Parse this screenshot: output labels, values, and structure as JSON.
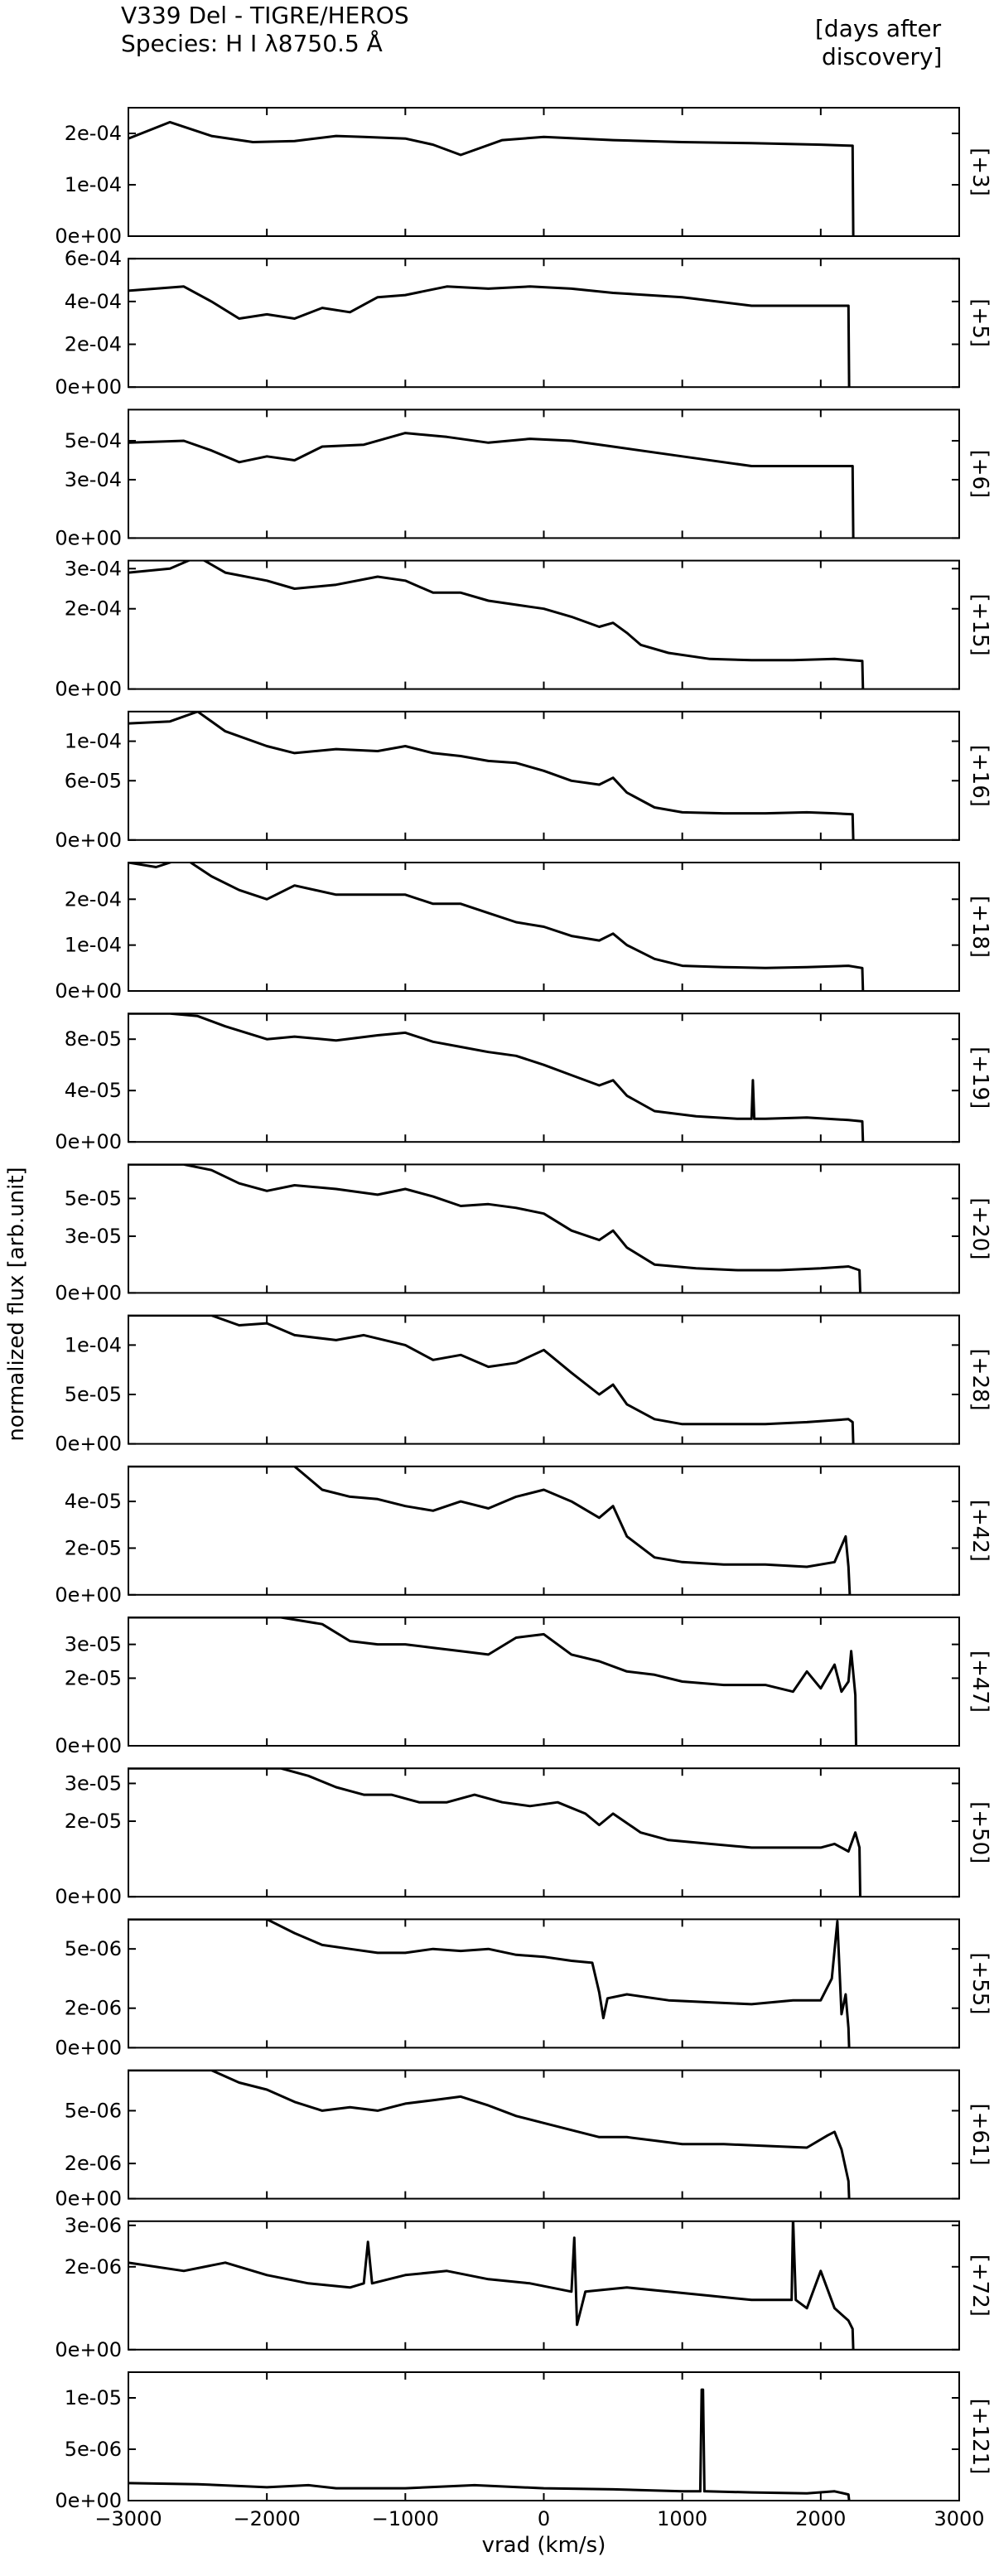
{
  "title_line1": "V339 Del - TIGRE/HEROS",
  "title_line2": "Species: H I λ8750.5 Å",
  "days_header_line1": "[days after",
  "days_header_line2": "discovery]",
  "chart_data": {
    "type": "line",
    "xlabel": "vrad (km/s)",
    "ylabel": "normalized flux [arb.unit]",
    "xlim": [
      -3000,
      3000
    ],
    "xticks": [
      -3000,
      -2000,
      -1000,
      0,
      1000,
      2000,
      3000
    ],
    "xtick_labels": [
      "−3000",
      "−2000",
      "−1000",
      "0",
      "1000",
      "2000",
      "3000"
    ],
    "panels": [
      {
        "day": "[+3]",
        "ylim": [
          0,
          0.00025
        ],
        "yticks": [
          0,
          0.0001,
          0.0002
        ],
        "ytick_labels": [
          "0e+00",
          "1e-04",
          "2e-04"
        ],
        "x": [
          -3000,
          -2700,
          -2400,
          -2100,
          -1800,
          -1500,
          -1300,
          -1000,
          -800,
          -600,
          -300,
          0,
          500,
          1000,
          1500,
          2000,
          2230,
          2235
        ],
        "y": [
          0.00019,
          0.000222,
          0.000195,
          0.000183,
          0.000185,
          0.000195,
          0.000193,
          0.00019,
          0.000178,
          0.000158,
          0.000187,
          0.000193,
          0.000187,
          0.000183,
          0.000181,
          0.000178,
          0.000176,
          0
        ]
      },
      {
        "day": "[+5]",
        "ylim": [
          0,
          0.0006
        ],
        "yticks": [
          0,
          0.0002,
          0.0004,
          0.0006
        ],
        "ytick_labels": [
          "0e+00",
          "2e-04",
          "4e-04",
          "6e-04"
        ],
        "x": [
          -3000,
          -2600,
          -2400,
          -2200,
          -2000,
          -1800,
          -1600,
          -1400,
          -1200,
          -1000,
          -700,
          -400,
          -100,
          200,
          500,
          1000,
          1500,
          2000,
          2200,
          2205
        ],
        "y": [
          0.00045,
          0.00047,
          0.0004,
          0.00032,
          0.00034,
          0.00032,
          0.00037,
          0.00035,
          0.00042,
          0.00043,
          0.00047,
          0.00046,
          0.00047,
          0.00046,
          0.00044,
          0.00042,
          0.00038,
          0.00038,
          0.00038,
          0
        ]
      },
      {
        "day": "[+6]",
        "ylim": [
          0,
          0.00066
        ],
        "yticks": [
          0,
          0.0003,
          0.0005
        ],
        "ytick_labels": [
          "0e+00",
          "3e-04",
          "5e-04"
        ],
        "x": [
          -3000,
          -2600,
          -2400,
          -2200,
          -2000,
          -1800,
          -1600,
          -1300,
          -1000,
          -700,
          -400,
          -100,
          200,
          500,
          1000,
          1500,
          2000,
          2230,
          2235
        ],
        "y": [
          0.00049,
          0.0005,
          0.00045,
          0.00039,
          0.00042,
          0.0004,
          0.00047,
          0.00048,
          0.00054,
          0.00052,
          0.00049,
          0.00051,
          0.0005,
          0.00047,
          0.00042,
          0.00037,
          0.00037,
          0.00037,
          0
        ]
      },
      {
        "day": "[+15]",
        "ylim": [
          0,
          0.00032
        ],
        "yticks": [
          0,
          0.0002,
          0.0003
        ],
        "ytick_labels": [
          "0e+00",
          "2e-04",
          "3e-04"
        ],
        "x": [
          -3000,
          -2700,
          -2500,
          -2300,
          -2000,
          -1800,
          -1500,
          -1200,
          -1000,
          -800,
          -600,
          -400,
          -200,
          0,
          200,
          400,
          500,
          600,
          700,
          900,
          1200,
          1500,
          1800,
          2100,
          2300,
          2305
        ],
        "y": [
          0.00029,
          0.0003,
          0.00033,
          0.00029,
          0.00027,
          0.00025,
          0.00026,
          0.00028,
          0.00027,
          0.00024,
          0.00024,
          0.00022,
          0.00021,
          0.0002,
          0.00018,
          0.000155,
          0.000165,
          0.00014,
          0.00011,
          9e-05,
          7.5e-05,
          7.2e-05,
          7.2e-05,
          7.5e-05,
          7e-05,
          0
        ]
      },
      {
        "day": "[+16]",
        "ylim": [
          0,
          0.00013
        ],
        "yticks": [
          0,
          6e-05,
          0.0001
        ],
        "ytick_labels": [
          "0e+00",
          "6e-05",
          "1e-04"
        ],
        "x": [
          -3000,
          -2700,
          -2500,
          -2300,
          -2000,
          -1800,
          -1500,
          -1200,
          -1000,
          -800,
          -600,
          -400,
          -200,
          0,
          200,
          400,
          500,
          600,
          800,
          1000,
          1300,
          1600,
          1900,
          2100,
          2230,
          2235
        ],
        "y": [
          0.000118,
          0.00012,
          0.00013,
          0.00011,
          9.5e-05,
          8.8e-05,
          9.2e-05,
          9e-05,
          9.5e-05,
          8.8e-05,
          8.5e-05,
          8e-05,
          7.8e-05,
          7e-05,
          6e-05,
          5.6e-05,
          6.3e-05,
          4.8e-05,
          3.3e-05,
          2.8e-05,
          2.7e-05,
          2.7e-05,
          2.8e-05,
          2.7e-05,
          2.6e-05,
          0
        ]
      },
      {
        "day": "[+18]",
        "ylim": [
          0,
          0.00028
        ],
        "yticks": [
          0,
          0.0001,
          0.0002
        ],
        "ytick_labels": [
          "0e+00",
          "1e-04",
          "2e-04"
        ],
        "x": [
          -3000,
          -2800,
          -2600,
          -2400,
          -2200,
          -2000,
          -1800,
          -1500,
          -1200,
          -1000,
          -800,
          -600,
          -400,
          -200,
          0,
          200,
          400,
          500,
          600,
          800,
          1000,
          1300,
          1600,
          1900,
          2200,
          2300,
          2305
        ],
        "y": [
          0.00028,
          0.00027,
          0.00029,
          0.00025,
          0.00022,
          0.0002,
          0.00023,
          0.00021,
          0.00021,
          0.00021,
          0.00019,
          0.00019,
          0.00017,
          0.00015,
          0.00014,
          0.00012,
          0.00011,
          0.000125,
          0.0001,
          7e-05,
          5.5e-05,
          5.2e-05,
          5e-05,
          5.2e-05,
          5.5e-05,
          5e-05,
          0
        ]
      },
      {
        "day": "[+19]",
        "ylim": [
          0,
          0.0001
        ],
        "yticks": [
          0,
          4e-05,
          8e-05
        ],
        "ytick_labels": [
          "0e+00",
          "4e-05",
          "8e-05"
        ],
        "x": [
          -3000,
          -2700,
          -2500,
          -2300,
          -2000,
          -1800,
          -1500,
          -1200,
          -1000,
          -800,
          -600,
          -400,
          -200,
          0,
          200,
          400,
          500,
          600,
          800,
          1100,
          1400,
          1500,
          1510,
          1520,
          1530,
          1600,
          1900,
          2200,
          2300,
          2305
        ],
        "y": [
          0.0001,
          0.0001,
          9.8e-05,
          9e-05,
          8e-05,
          8.2e-05,
          7.9e-05,
          8.3e-05,
          8.5e-05,
          7.8e-05,
          7.4e-05,
          7e-05,
          6.7e-05,
          6e-05,
          5.2e-05,
          4.4e-05,
          4.8e-05,
          3.6e-05,
          2.4e-05,
          2e-05,
          1.8e-05,
          1.8e-05,
          4.8e-05,
          1.8e-05,
          1.8e-05,
          1.8e-05,
          1.9e-05,
          1.7e-05,
          1.6e-05,
          0
        ]
      },
      {
        "day": "[+20]",
        "ylim": [
          0,
          6.8e-05
        ],
        "yticks": [
          0,
          3e-05,
          5e-05
        ],
        "ytick_labels": [
          "0e+00",
          "3e-05",
          "5e-05"
        ],
        "x": [
          -3000,
          -2600,
          -2400,
          -2200,
          -2000,
          -1800,
          -1500,
          -1200,
          -1000,
          -800,
          -600,
          -400,
          -200,
          0,
          200,
          400,
          500,
          600,
          800,
          1100,
          1400,
          1700,
          2000,
          2200,
          2280,
          2285
        ],
        "y": [
          6.8e-05,
          6.8e-05,
          6.5e-05,
          5.8e-05,
          5.4e-05,
          5.7e-05,
          5.5e-05,
          5.2e-05,
          5.5e-05,
          5.1e-05,
          4.6e-05,
          4.7e-05,
          4.5e-05,
          4.2e-05,
          3.3e-05,
          2.8e-05,
          3.3e-05,
          2.4e-05,
          1.5e-05,
          1.3e-05,
          1.2e-05,
          1.2e-05,
          1.3e-05,
          1.4e-05,
          1.2e-05,
          0
        ]
      },
      {
        "day": "[+28]",
        "ylim": [
          0,
          0.00013
        ],
        "yticks": [
          0,
          5e-05,
          0.0001
        ],
        "ytick_labels": [
          "0e+00",
          "5e-05",
          "1e-04"
        ],
        "x": [
          -3000,
          -2400,
          -2200,
          -2000,
          -1800,
          -1500,
          -1300,
          -1000,
          -800,
          -600,
          -400,
          -200,
          0,
          200,
          400,
          500,
          600,
          800,
          1000,
          1300,
          1600,
          1900,
          2200,
          2230,
          2235
        ],
        "y": [
          0.00013,
          0.00013,
          0.00012,
          0.000122,
          0.00011,
          0.000105,
          0.00011,
          0.0001,
          8.5e-05,
          9e-05,
          7.8e-05,
          8.2e-05,
          9.5e-05,
          7.2e-05,
          5e-05,
          6e-05,
          4e-05,
          2.5e-05,
          2e-05,
          2e-05,
          2e-05,
          2.2e-05,
          2.5e-05,
          2.2e-05,
          0
        ]
      },
      {
        "day": "[+42]",
        "ylim": [
          0,
          5.5e-05
        ],
        "yticks": [
          0,
          2e-05,
          4e-05
        ],
        "ytick_labels": [
          "0e+00",
          "2e-05",
          "4e-05"
        ],
        "x": [
          -3000,
          -1800,
          -1600,
          -1400,
          -1200,
          -1000,
          -800,
          -600,
          -400,
          -200,
          0,
          200,
          400,
          500,
          600,
          800,
          1000,
          1300,
          1600,
          1900,
          2100,
          2180,
          2200,
          2210
        ],
        "y": [
          5.5e-05,
          5.5e-05,
          4.5e-05,
          4.2e-05,
          4.1e-05,
          3.8e-05,
          3.6e-05,
          4e-05,
          3.7e-05,
          4.2e-05,
          4.5e-05,
          4e-05,
          3.3e-05,
          3.8e-05,
          2.5e-05,
          1.6e-05,
          1.4e-05,
          1.3e-05,
          1.3e-05,
          1.2e-05,
          1.4e-05,
          2.5e-05,
          1.2e-05,
          0
        ]
      },
      {
        "day": "[+47]",
        "ylim": [
          0,
          3.8e-05
        ],
        "yticks": [
          0,
          2e-05,
          3e-05
        ],
        "ytick_labels": [
          "0e+00",
          "2e-05",
          "3e-05"
        ],
        "x": [
          -3000,
          -1900,
          -1600,
          -1400,
          -1200,
          -1000,
          -800,
          -600,
          -400,
          -200,
          0,
          200,
          400,
          600,
          800,
          1000,
          1300,
          1600,
          1800,
          1900,
          2000,
          2100,
          2150,
          2200,
          2220,
          2250,
          2255
        ],
        "y": [
          3.8e-05,
          3.8e-05,
          3.6e-05,
          3.1e-05,
          3e-05,
          3e-05,
          2.9e-05,
          2.8e-05,
          2.7e-05,
          3.2e-05,
          3.3e-05,
          2.7e-05,
          2.5e-05,
          2.2e-05,
          2.1e-05,
          1.9e-05,
          1.8e-05,
          1.8e-05,
          1.6e-05,
          2.2e-05,
          1.7e-05,
          2.4e-05,
          1.6e-05,
          1.9e-05,
          2.8e-05,
          1.5e-05,
          0
        ]
      },
      {
        "day": "[+50]",
        "ylim": [
          0,
          3.4e-05
        ],
        "yticks": [
          0,
          2e-05,
          3e-05
        ],
        "ytick_labels": [
          "0e+00",
          "2e-05",
          "3e-05"
        ],
        "x": [
          -3000,
          -1900,
          -1700,
          -1500,
          -1300,
          -1100,
          -900,
          -700,
          -500,
          -300,
          -100,
          100,
          300,
          400,
          500,
          700,
          900,
          1200,
          1500,
          1800,
          2000,
          2100,
          2200,
          2250,
          2280,
          2285
        ],
        "y": [
          3.4e-05,
          3.4e-05,
          3.2e-05,
          2.9e-05,
          2.7e-05,
          2.7e-05,
          2.5e-05,
          2.5e-05,
          2.7e-05,
          2.5e-05,
          2.4e-05,
          2.5e-05,
          2.2e-05,
          1.9e-05,
          2.2e-05,
          1.7e-05,
          1.5e-05,
          1.4e-05,
          1.3e-05,
          1.3e-05,
          1.3e-05,
          1.4e-05,
          1.2e-05,
          1.7e-05,
          1.3e-05,
          0
        ]
      },
      {
        "day": "[+55]",
        "ylim": [
          0,
          6.5e-06
        ],
        "yticks": [
          0,
          2e-06,
          5e-06
        ],
        "ytick_labels": [
          "0e+00",
          "2e-06",
          "5e-06"
        ],
        "x": [
          -3000,
          -2000,
          -1800,
          -1600,
          -1400,
          -1200,
          -1000,
          -800,
          -600,
          -400,
          -200,
          0,
          200,
          350,
          400,
          430,
          460,
          600,
          900,
          1200,
          1500,
          1800,
          2000,
          2080,
          2120,
          2150,
          2180,
          2200,
          2205
        ],
        "y": [
          6.5e-06,
          6.5e-06,
          5.8e-06,
          5.2e-06,
          5e-06,
          4.8e-06,
          4.8e-06,
          5e-06,
          4.9e-06,
          5e-06,
          4.7e-06,
          4.6e-06,
          4.4e-06,
          4.3e-06,
          2.8e-06,
          1.5e-06,
          2.5e-06,
          2.7e-06,
          2.4e-06,
          2.3e-06,
          2.2e-06,
          2.4e-06,
          2.4e-06,
          3.5e-06,
          6.4e-06,
          1.7e-06,
          2.7e-06,
          1e-06,
          0
        ]
      },
      {
        "day": "[+61]",
        "ylim": [
          0,
          7.3e-06
        ],
        "yticks": [
          0,
          2e-06,
          5e-06
        ],
        "ytick_labels": [
          "0e+00",
          "2e-06",
          "5e-06"
        ],
        "x": [
          -3000,
          -2400,
          -2200,
          -2000,
          -1800,
          -1600,
          -1400,
          -1200,
          -1000,
          -800,
          -600,
          -400,
          -200,
          0,
          200,
          400,
          600,
          800,
          1000,
          1300,
          1600,
          1900,
          2050,
          2100,
          2150,
          2200,
          2205
        ],
        "y": [
          7.3e-06,
          7.3e-06,
          6.6e-06,
          6.2e-06,
          5.5e-06,
          5e-06,
          5.2e-06,
          5e-06,
          5.4e-06,
          5.6e-06,
          5.8e-06,
          5.3e-06,
          4.7e-06,
          4.3e-06,
          3.9e-06,
          3.5e-06,
          3.5e-06,
          3.3e-06,
          3.1e-06,
          3.1e-06,
          3e-06,
          2.9e-06,
          3.6e-06,
          3.8e-06,
          2.8e-06,
          1e-06,
          0
        ]
      },
      {
        "day": "[+72]",
        "ylim": [
          0,
          3.1e-06
        ],
        "yticks": [
          0,
          2e-06,
          3e-06
        ],
        "ytick_labels": [
          "0e+00",
          "2e-06",
          "3e-06"
        ],
        "x": [
          -3000,
          -2600,
          -2300,
          -2000,
          -1700,
          -1400,
          -1300,
          -1270,
          -1240,
          -1000,
          -700,
          -400,
          -100,
          200,
          220,
          240,
          300,
          600,
          900,
          1200,
          1500,
          1790,
          1800,
          1820,
          1900,
          2000,
          2100,
          2200,
          2230,
          2235
        ],
        "y": [
          2.1e-06,
          1.9e-06,
          2.1e-06,
          1.8e-06,
          1.6e-06,
          1.5e-06,
          1.6e-06,
          2.6e-06,
          1.6e-06,
          1.8e-06,
          1.9e-06,
          1.7e-06,
          1.6e-06,
          1.4e-06,
          2.7e-06,
          6e-07,
          1.4e-06,
          1.5e-06,
          1.4e-06,
          1.3e-06,
          1.2e-06,
          1.2e-06,
          3.2e-06,
          1.2e-06,
          1e-06,
          1.9e-06,
          1e-06,
          7e-07,
          5e-07,
          0
        ]
      },
      {
        "day": "[+121]",
        "ylim": [
          0,
          1.25e-05
        ],
        "yticks": [
          0,
          5e-06,
          1e-05
        ],
        "ytick_labels": [
          "0e+00",
          "5e-06",
          "1e-05"
        ],
        "x": [
          -3000,
          -2500,
          -2000,
          -1700,
          -1500,
          -1000,
          -500,
          0,
          500,
          1000,
          1130,
          1140,
          1150,
          1160,
          1170,
          1500,
          1900,
          2100,
          2200,
          2205
        ],
        "y": [
          1.7e-06,
          1.6e-06,
          1.3e-06,
          1.5e-06,
          1.2e-06,
          1.2e-06,
          1.5e-06,
          1.2e-06,
          1.1e-06,
          9e-07,
          9e-07,
          1.08e-05,
          1.08e-05,
          9e-07,
          9e-07,
          8e-07,
          7e-07,
          9e-07,
          6e-07,
          0
        ]
      }
    ]
  }
}
